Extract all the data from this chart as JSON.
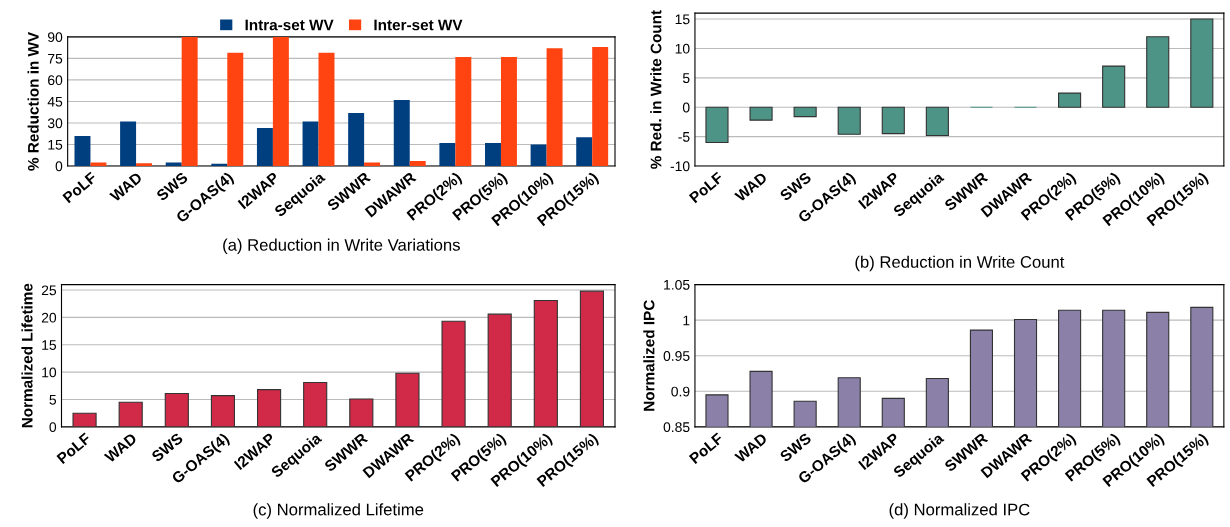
{
  "chart_data": [
    {
      "type": "bar",
      "title": "(a) Reduction in Write Variations",
      "ylabel": "% Reduction in WV",
      "categories": [
        "PoLF",
        "WAD",
        "SWS",
        "G-OAS(4)",
        "I2WAP",
        "Sequoia",
        "SWWR",
        "DWAWR",
        "PRO(2%)",
        "PRO(5%)",
        "PRO(10%)",
        "PRO(15%)"
      ],
      "series": [
        {
          "name": "Intra-set WV",
          "color": "#003f7f",
          "values": [
            21,
            31,
            2.5,
            1.5,
            26.5,
            31,
            37,
            46,
            16,
            16,
            15,
            20
          ]
        },
        {
          "name": "Inter-set WV",
          "color": "#ff4411",
          "values": [
            2.5,
            2,
            90,
            79,
            90,
            79,
            2.5,
            3.5,
            76,
            76,
            82,
            83
          ]
        }
      ],
      "ylim": [
        0,
        90
      ],
      "yticks": [
        0,
        15,
        30,
        45,
        60,
        75,
        90
      ],
      "grid": "y",
      "legend": "top"
    },
    {
      "type": "bar",
      "title": "(b) Reduction in Write Count",
      "ylabel": "% Red. in Write Count",
      "categories": [
        "PoLF",
        "WAD",
        "SWS",
        "G-OAS(4)",
        "I2WAP",
        "Sequoia",
        "SWWR",
        "DWAWR",
        "PRO(2%)",
        "PRO(5%)",
        "PRO(10%)",
        "PRO(15%)"
      ],
      "series": [
        {
          "color": "#4e9486",
          "values": [
            -6,
            -2.2,
            -1.6,
            -4.6,
            -4.5,
            -4.8,
            0,
            0,
            2.4,
            7,
            12,
            15
          ]
        }
      ],
      "ylim": [
        -10,
        16
      ],
      "yticks": [
        -10,
        -5,
        0,
        5,
        10,
        15
      ],
      "grid": "y"
    },
    {
      "type": "bar",
      "title": "(c) Normalized Lifetime",
      "ylabel": "Normalized Lifetime",
      "categories": [
        "PoLF",
        "WAD",
        "SWS",
        "G-OAS(4)",
        "I2WAP",
        "Sequoia",
        "SWWR",
        "DWAWR",
        "PRO(2%)",
        "PRO(5%)",
        "PRO(10%)",
        "PRO(15%)"
      ],
      "series": [
        {
          "color": "#d02a48",
          "values": [
            2.5,
            4.5,
            6.1,
            5.7,
            6.8,
            8.1,
            5.1,
            9.8,
            19.3,
            20.6,
            23.1,
            24.8
          ]
        }
      ],
      "ylim": [
        0,
        26
      ],
      "yticks": [
        0,
        5,
        10,
        15,
        20,
        25
      ],
      "grid": "y"
    },
    {
      "type": "bar",
      "title": "(d) Normalized IPC",
      "ylabel": "Normalized IPC",
      "categories": [
        "PoLF",
        "WAD",
        "SWS",
        "G-OAS(4)",
        "I2WAP",
        "Sequoia",
        "SWWR",
        "DWAWR",
        "PRO(2%)",
        "PRO(5%)",
        "PRO(10%)",
        "PRO(15%)"
      ],
      "series": [
        {
          "color": "#8a80a8",
          "values": [
            0.895,
            0.928,
            0.886,
            0.919,
            0.89,
            0.918,
            0.986,
            1.001,
            1.014,
            1.014,
            1.011,
            1.018
          ]
        }
      ],
      "ylim": [
        0.85,
        1.05
      ],
      "yticks": [
        0.85,
        0.9,
        0.95,
        1,
        1.05
      ],
      "grid": "y"
    }
  ]
}
